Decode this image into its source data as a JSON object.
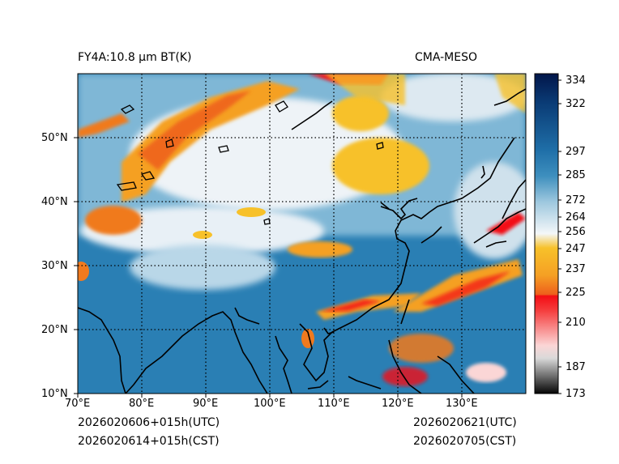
{
  "header": {
    "left_title": "FY4A:10.8 µm BT(K)",
    "right_title": "CMA-MESO"
  },
  "footer": {
    "init_utc": "2026020606+015h(UTC)",
    "init_cst": "2026020614+015h(CST)",
    "valid_utc": "2026020621(UTC)",
    "valid_cst": "2026020705(CST)"
  },
  "map": {
    "lon_ticks": [
      "70°E",
      "80°E",
      "90°E",
      "100°E",
      "110°E",
      "120°E",
      "130°E"
    ],
    "lat_ticks": [
      "10°N",
      "20°N",
      "30°N",
      "40°N",
      "50°N"
    ],
    "extent": {
      "lon_min": 70,
      "lon_max": 140,
      "lat_min": 10,
      "lat_max": 60
    }
  },
  "colorbar": {
    "ticks": [
      "334",
      "322",
      "297",
      "285",
      "272",
      "264",
      "256",
      "247",
      "237",
      "225",
      "210",
      "187",
      "173"
    ],
    "colors": {
      "dark_navy": "#02164a",
      "blue": "#1f6fa8",
      "light_blue": "#9dc7de",
      "white": "#f4f7f9",
      "yellow": "#f7c12a",
      "orange": "#f07a1f",
      "red": "#f30d14",
      "pink": "#fbd6d6",
      "gray": "#8c8c8c",
      "black": "#050505"
    }
  }
}
